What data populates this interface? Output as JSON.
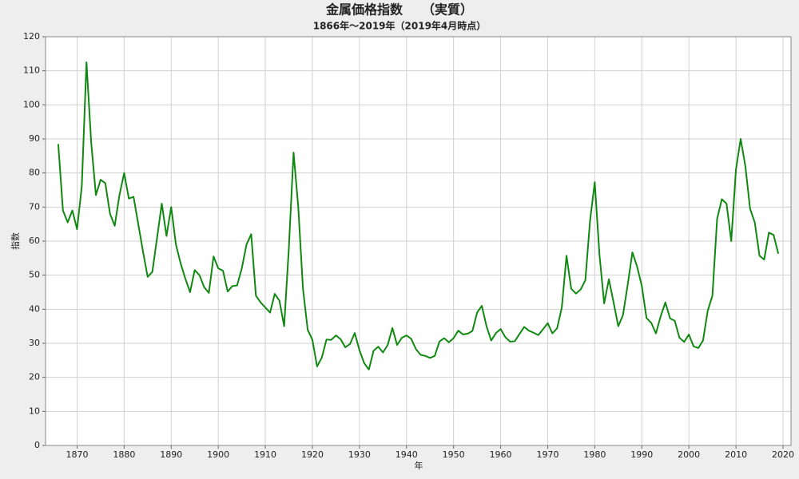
{
  "chart_data": {
    "type": "line",
    "title": "金属価格指数　　（実質）",
    "subtitle": "1866年～2019年（2019年4月時点）",
    "x_label": "年",
    "y_label": "指数",
    "color": "#118811",
    "grid": true,
    "xlim": [
      1863.3,
      2021.7
    ],
    "ylim": [
      0,
      120
    ],
    "xticks": [
      1870,
      1880,
      1890,
      1900,
      1910,
      1920,
      1930,
      1940,
      1950,
      1960,
      1970,
      1980,
      1990,
      2000,
      2010,
      2020
    ],
    "yticks": [
      0,
      10,
      20,
      30,
      40,
      50,
      60,
      70,
      80,
      90,
      100,
      110,
      120
    ],
    "x": [
      1866,
      1867,
      1868,
      1869,
      1870,
      1871,
      1872,
      1873,
      1874,
      1875,
      1876,
      1877,
      1878,
      1879,
      1880,
      1881,
      1882,
      1883,
      1884,
      1885,
      1886,
      1887,
      1888,
      1889,
      1890,
      1891,
      1892,
      1893,
      1894,
      1895,
      1896,
      1897,
      1898,
      1899,
      1900,
      1901,
      1902,
      1903,
      1904,
      1905,
      1906,
      1907,
      1908,
      1909,
      1910,
      1911,
      1912,
      1913,
      1914,
      1915,
      1916,
      1917,
      1918,
      1919,
      1920,
      1921,
      1922,
      1923,
      1924,
      1925,
      1926,
      1927,
      1928,
      1929,
      1930,
      1931,
      1932,
      1933,
      1934,
      1935,
      1936,
      1937,
      1938,
      1939,
      1940,
      1941,
      1942,
      1943,
      1944,
      1945,
      1946,
      1947,
      1948,
      1949,
      1950,
      1951,
      1952,
      1953,
      1954,
      1955,
      1956,
      1957,
      1958,
      1959,
      1960,
      1961,
      1962,
      1963,
      1964,
      1965,
      1966,
      1967,
      1968,
      1969,
      1970,
      1971,
      1972,
      1973,
      1974,
      1975,
      1976,
      1977,
      1978,
      1979,
      1980,
      1981,
      1982,
      1983,
      1984,
      1985,
      1986,
      1987,
      1988,
      1989,
      1990,
      1991,
      1992,
      1993,
      1994,
      1995,
      1996,
      1997,
      1998,
      1999,
      2000,
      2001,
      2002,
      2003,
      2004,
      2005,
      2006,
      2007,
      2008,
      2009,
      2010,
      2011,
      2012,
      2013,
      2014,
      2015,
      2016,
      2017,
      2018,
      2019
    ],
    "values": [
      88.5,
      69,
      65.5,
      69,
      63.5,
      76,
      112.5,
      89,
      73.5,
      78,
      77,
      68,
      64.5,
      73.5,
      80,
      72.5,
      73,
      65,
      57,
      49.5,
      51,
      61,
      71,
      61.5,
      70,
      59,
      53.5,
      49,
      45,
      51.5,
      50,
      46.5,
      44.8,
      55.5,
      52,
      51.3,
      45.2,
      46.8,
      47,
      52,
      59,
      62,
      44,
      42,
      40.5,
      39,
      44.5,
      42.5,
      35,
      58,
      86,
      70,
      46,
      34,
      31,
      23.2,
      25.8,
      31.1,
      31,
      32.3,
      31.2,
      28.8,
      29.8,
      33,
      28,
      24.2,
      22.3,
      27.8,
      29,
      27.3,
      29.5,
      34.5,
      29.5,
      31.6,
      32.3,
      31.3,
      28.3,
      26.6,
      26.3,
      25.7,
      26.3,
      30.5,
      31.5,
      30.3,
      31.5,
      33.7,
      32.6,
      32.8,
      33.6,
      39,
      41,
      35,
      30.8,
      33,
      34.2,
      31.8,
      30.5,
      30.6,
      32.7,
      34.8,
      33.7,
      33.1,
      32.4,
      34.1,
      35.9,
      32.9,
      34.4,
      40.5,
      55.7,
      46,
      44.6,
      45.8,
      48.5,
      66,
      77.3,
      56,
      41.7,
      48.8,
      42,
      35,
      38.3,
      47.2,
      56.7,
      52.5,
      46.8,
      37.4,
      36,
      32.9,
      37.9,
      42,
      37.3,
      36.6,
      31.6,
      30.4,
      32.6,
      29.1,
      28.6,
      30.8,
      39.5,
      44,
      66.5,
      72.3,
      71,
      60,
      81,
      90,
      82,
      69.5,
      65.5,
      55.7,
      54.6,
      62.5,
      61.8,
      56.3
    ]
  }
}
